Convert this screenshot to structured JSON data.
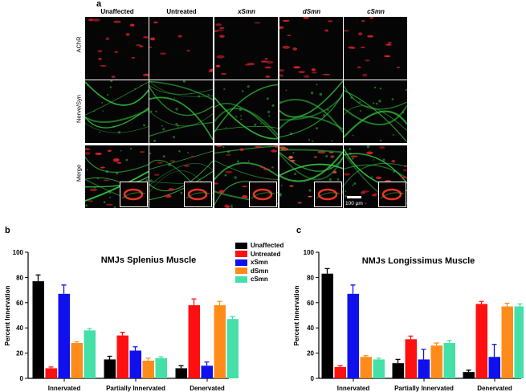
{
  "panel_a": {
    "letter": "a",
    "columns": [
      {
        "label": "Unaffected",
        "italic": false
      },
      {
        "label": "Untreated",
        "italic": false
      },
      {
        "label": "xSmn",
        "italic": true
      },
      {
        "label": "dSmn",
        "italic": true
      },
      {
        "label": "cSmn",
        "italic": true
      }
    ],
    "rows": [
      "AChR",
      "Nerve/Syn",
      "Merge"
    ],
    "scale_bar": "100 µm"
  },
  "legend": [
    {
      "name": "Unaffected",
      "color": "#000000"
    },
    {
      "name": "Untreated",
      "color": "#ff1010"
    },
    {
      "name": "xSmn",
      "color": "#1010ee"
    },
    {
      "name": "dSmn",
      "color": "#ff8c1a"
    },
    {
      "name": "cSmn",
      "color": "#44e0a8"
    }
  ],
  "chart_data": [
    {
      "letter": "b",
      "type": "bar",
      "title": "NMJs Splenius Muscle",
      "xlabel": "",
      "ylabel": "Percent Innervation",
      "ylim": [
        0,
        100
      ],
      "yticks": [
        0,
        20,
        40,
        60,
        80,
        100
      ],
      "categories": [
        "Innervated",
        "Partially Innervated",
        "Denervated"
      ],
      "series": [
        {
          "name": "Unaffected",
          "values": [
            77,
            15,
            8
          ],
          "errors": [
            5,
            2.5,
            2
          ]
        },
        {
          "name": "Untreated",
          "values": [
            8,
            34,
            58
          ],
          "errors": [
            1,
            2.5,
            5
          ]
        },
        {
          "name": "xSmn",
          "values": [
            67,
            22,
            10
          ],
          "errors": [
            7,
            3,
            3
          ]
        },
        {
          "name": "dSmn",
          "values": [
            28,
            14,
            58
          ],
          "errors": [
            1,
            2,
            3
          ]
        },
        {
          "name": "cSmn",
          "values": [
            38,
            16,
            47
          ],
          "errors": [
            1.5,
            1,
            2
          ]
        }
      ]
    },
    {
      "letter": "c",
      "type": "bar",
      "title": "NMJs Longissimus Muscle",
      "xlabel": "",
      "ylabel": "Percent Innervation",
      "ylim": [
        0,
        100
      ],
      "yticks": [
        0,
        20,
        40,
        60,
        80,
        100
      ],
      "categories": [
        "Innervated",
        "Partially Innervated",
        "Denervated"
      ],
      "series": [
        {
          "name": "Unaffected",
          "values": [
            83,
            12,
            5
          ],
          "errors": [
            4,
            3,
            1.5
          ]
        },
        {
          "name": "Untreated",
          "values": [
            9,
            31,
            59
          ],
          "errors": [
            1,
            2.5,
            2
          ]
        },
        {
          "name": "xSmn",
          "values": [
            67,
            15,
            17
          ],
          "errors": [
            7,
            8,
            10
          ]
        },
        {
          "name": "dSmn",
          "values": [
            17,
            26,
            57
          ],
          "errors": [
            1,
            2,
            2.5
          ]
        },
        {
          "name": "cSmn",
          "values": [
            15,
            28,
            57
          ],
          "errors": [
            1,
            2,
            2
          ]
        }
      ]
    }
  ]
}
